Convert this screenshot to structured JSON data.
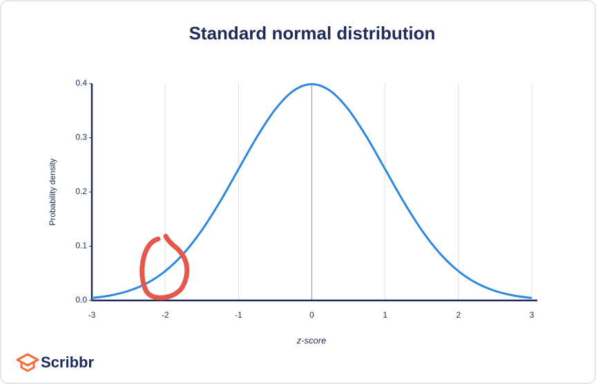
{
  "chart_data": {
    "type": "line",
    "title": "Standard normal distribution",
    "x_label": "z-score",
    "y_label": "Probability density",
    "x": [
      -3,
      -2.75,
      -2.5,
      -2.25,
      -2,
      -1.75,
      -1.5,
      -1.25,
      -1,
      -0.75,
      -0.5,
      -0.25,
      0,
      0.25,
      0.5,
      0.75,
      1,
      1.25,
      1.5,
      1.75,
      2,
      2.25,
      2.5,
      2.75,
      3
    ],
    "values": [
      0.0044,
      0.0091,
      0.0175,
      0.0317,
      0.054,
      0.0863,
      0.1295,
      0.1826,
      0.242,
      0.3011,
      0.3521,
      0.3867,
      0.3989,
      0.3867,
      0.3521,
      0.3011,
      0.242,
      0.1826,
      0.1295,
      0.0863,
      0.054,
      0.0317,
      0.0175,
      0.0091,
      0.0044
    ],
    "color": "#2d87e0",
    "xlim": [
      -3,
      3
    ],
    "ylim": [
      0,
      0.4
    ],
    "xticks": [
      -3,
      -2,
      -1,
      0,
      1,
      2,
      3
    ],
    "yticks": [
      {
        "value": 0,
        "label": "0.0"
      },
      0.1,
      0.2,
      0.3,
      0.4
    ],
    "grid": true
  },
  "logo": {
    "text": "Scribbr"
  }
}
